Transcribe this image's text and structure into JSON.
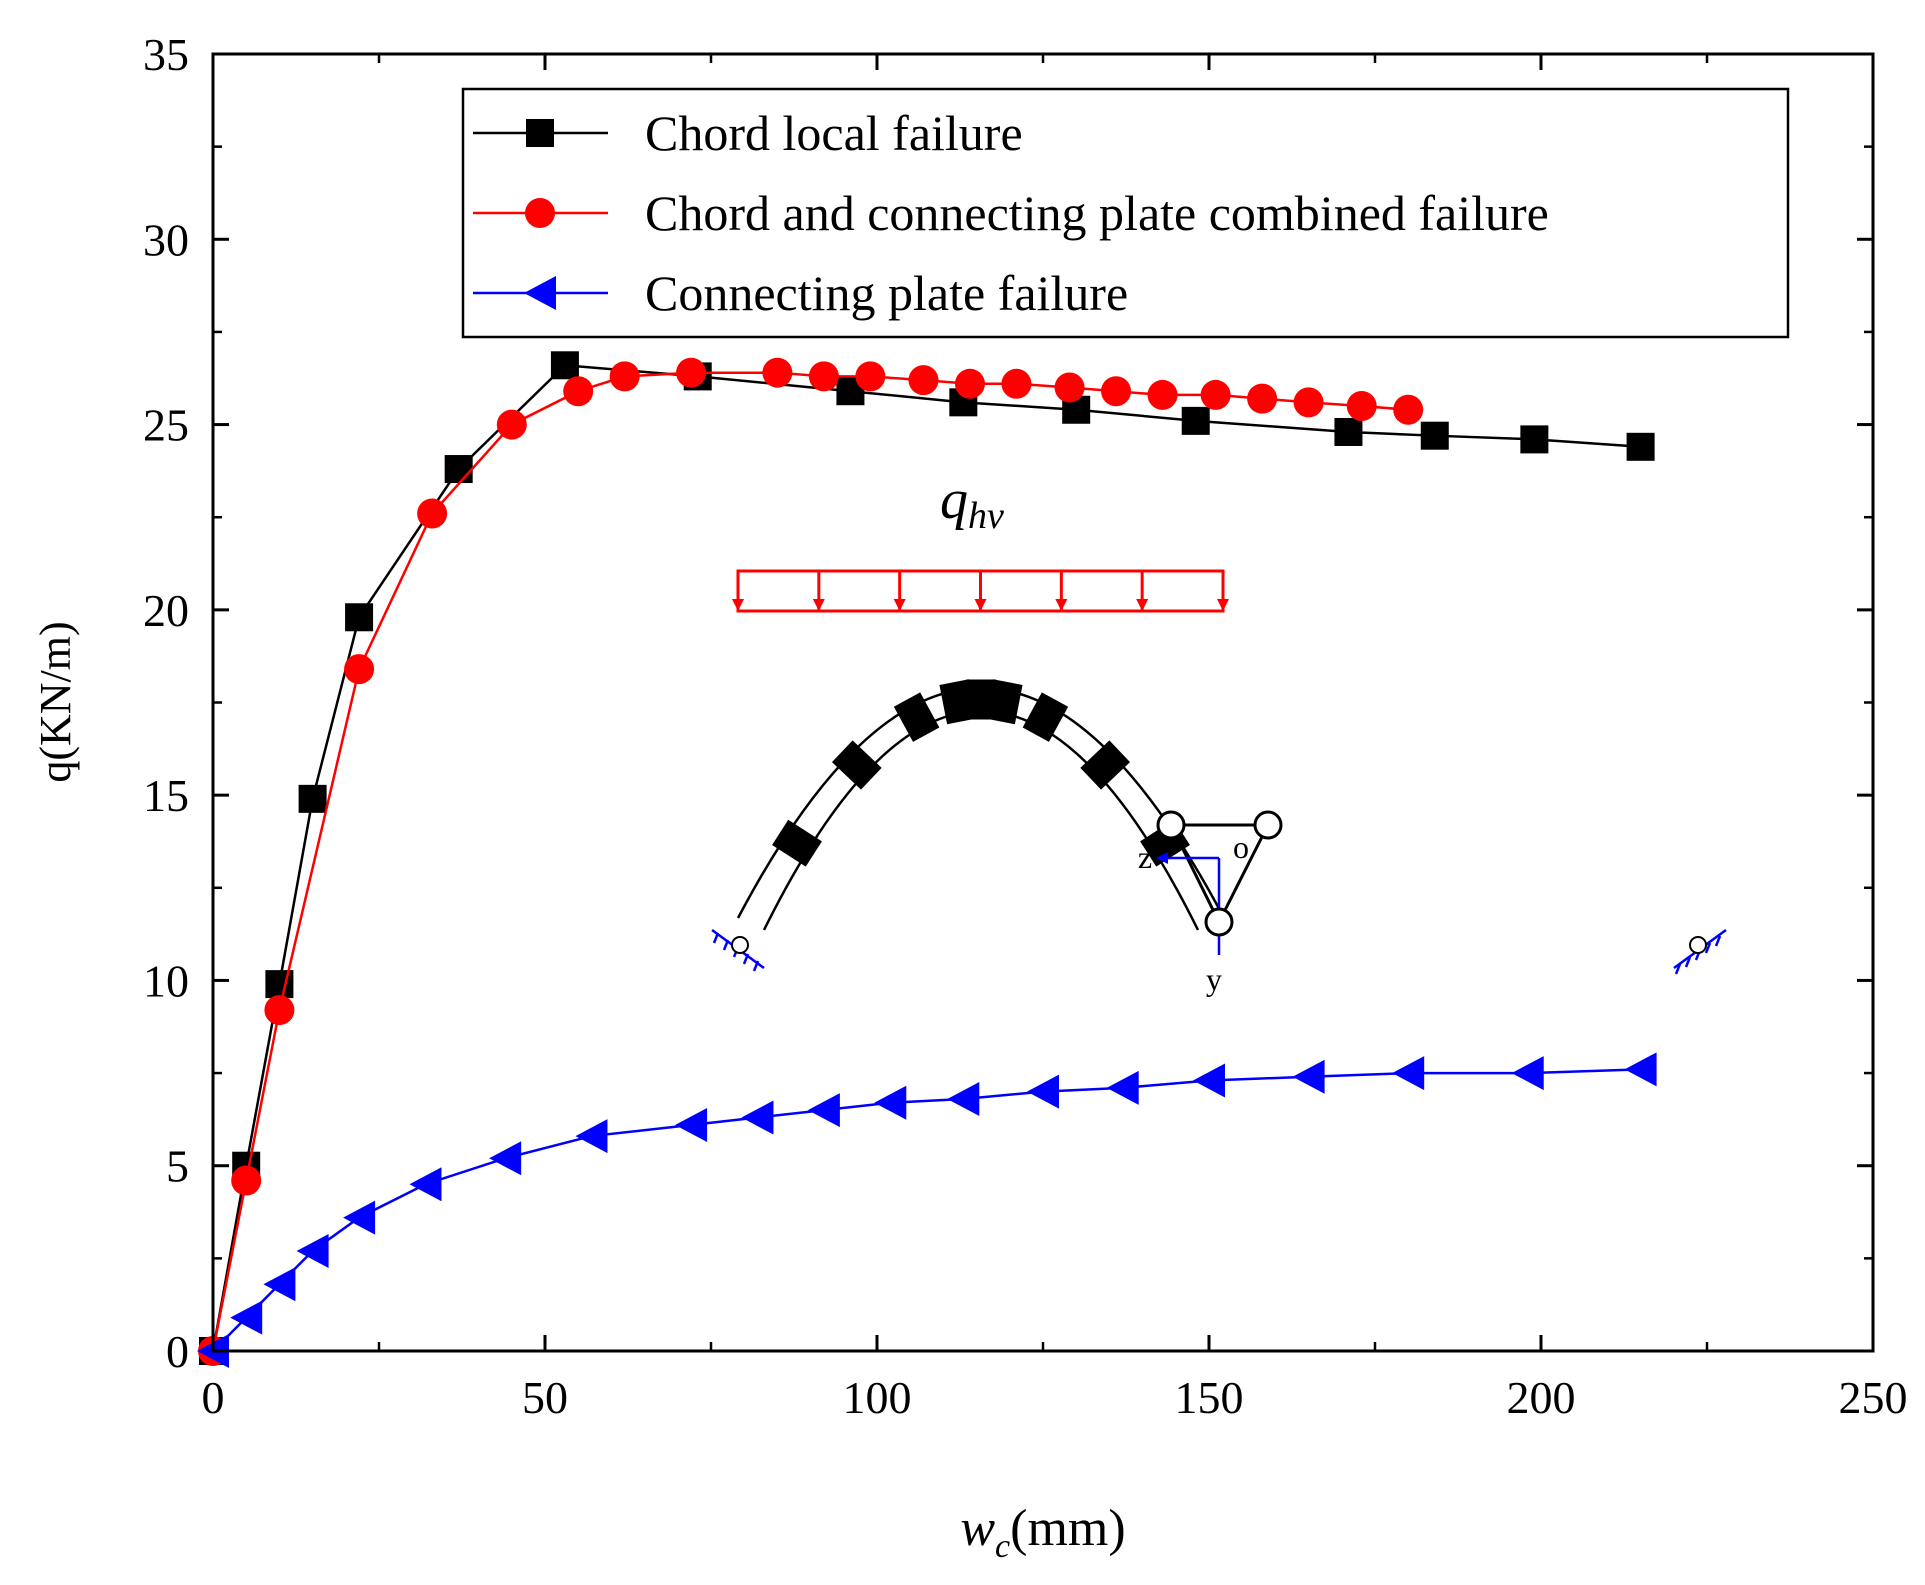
{
  "chart_data": {
    "type": "line",
    "title": "",
    "xlabel": "(mm)",
    "xlabel_symbol": "w",
    "xlabel_subscript": "c",
    "ylabel": "q(KN/m)",
    "xlim": [
      0,
      250
    ],
    "ylim": [
      0,
      35
    ],
    "xticks": [
      0,
      50,
      100,
      150,
      200,
      250
    ],
    "yticks": [
      0,
      5,
      10,
      15,
      20,
      25,
      30,
      35
    ],
    "x_tick_labels": [
      "0",
      "50",
      "100",
      "150",
      "200",
      "250"
    ],
    "y_tick_labels": [
      "0",
      "5",
      "10",
      "15",
      "20",
      "25",
      "30",
      "35"
    ],
    "grid": false,
    "legend_position": "top",
    "series": [
      {
        "name": "Chord local failure",
        "color": "#000000",
        "marker": "square",
        "x": [
          0,
          5,
          10,
          15,
          22,
          37,
          53,
          73,
          96,
          113,
          130,
          148,
          171,
          184,
          199,
          215
        ],
        "y": [
          0,
          5.0,
          9.9,
          14.9,
          19.8,
          23.8,
          26.6,
          26.3,
          25.9,
          25.6,
          25.4,
          25.1,
          24.8,
          24.7,
          24.6,
          24.4
        ]
      },
      {
        "name": "Chord and connecting plate combined failure",
        "color": "#ff0000",
        "marker": "circle",
        "x": [
          0,
          5,
          10,
          22,
          33,
          45,
          55,
          62,
          72,
          85,
          92,
          99,
          107,
          114,
          121,
          129,
          136,
          143,
          151,
          158,
          165,
          173,
          180
        ],
        "y": [
          0,
          4.6,
          9.2,
          18.4,
          22.6,
          25.0,
          25.9,
          26.3,
          26.4,
          26.4,
          26.3,
          26.3,
          26.2,
          26.1,
          26.1,
          26.0,
          25.9,
          25.8,
          25.8,
          25.7,
          25.6,
          25.5,
          25.4
        ]
      },
      {
        "name": "Connecting plate failure",
        "color": "#0000ff",
        "marker": "triangle-left",
        "x": [
          0,
          5,
          10,
          15,
          22,
          32,
          44,
          57,
          72,
          82,
          92,
          102,
          113,
          125,
          137,
          150,
          165,
          180,
          198,
          215
        ],
        "y": [
          0,
          0.9,
          1.8,
          2.7,
          3.6,
          4.5,
          5.2,
          5.8,
          6.1,
          6.3,
          6.5,
          6.7,
          6.8,
          7.0,
          7.1,
          7.3,
          7.4,
          7.5,
          7.5,
          7.6
        ]
      }
    ],
    "annotations": {
      "load_symbol": "q",
      "load_subscript": "hv",
      "axis_z": "z",
      "axis_o": "o",
      "axis_y": "y"
    }
  },
  "colors": {
    "axis": "#000000",
    "load_arrows": "#ff0000",
    "local_axes": "#0000ff"
  }
}
